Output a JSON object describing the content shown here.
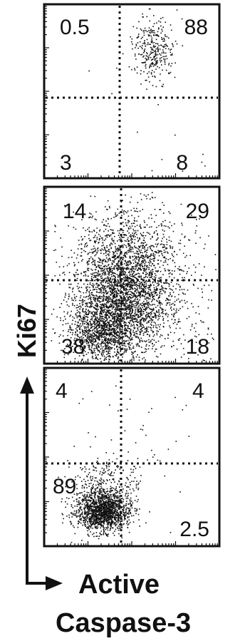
{
  "chart_data": {
    "type": "scatter",
    "y_axis_label": "Ki67",
    "x_axis_label_line1": "Active",
    "x_axis_label_line2": "Caspase-3",
    "panels": [
      {
        "quadrants": {
          "upper_left": "0.5",
          "upper_right": "88",
          "lower_left": "3",
          "lower_right": "8"
        },
        "clusters": [
          {
            "cx": 0.62,
            "cy": 0.26,
            "sx": 0.06,
            "sy": 0.09,
            "n": 320
          },
          {
            "cx": 0.75,
            "cy": 0.75,
            "sx": 0.25,
            "sy": 0.2,
            "n": 18
          }
        ]
      },
      {
        "quadrants": {
          "upper_left": "14",
          "upper_right": "29",
          "lower_left": "38",
          "lower_right": "18"
        },
        "clusters": [
          {
            "cx": 0.43,
            "cy": 0.65,
            "sx": 0.13,
            "sy": 0.17,
            "n": 2600
          },
          {
            "cx": 0.5,
            "cy": 0.38,
            "sx": 0.16,
            "sy": 0.14,
            "n": 900
          },
          {
            "cx": 0.3,
            "cy": 0.82,
            "sx": 0.09,
            "sy": 0.08,
            "n": 700
          },
          {
            "cx": 0.72,
            "cy": 0.72,
            "sx": 0.14,
            "sy": 0.14,
            "n": 200
          }
        ]
      },
      {
        "quadrants": {
          "upper_left": "4",
          "upper_right": "4",
          "lower_left": "89",
          "lower_right": "2.5"
        },
        "clusters": [
          {
            "cx": 0.33,
            "cy": 0.8,
            "sx": 0.075,
            "sy": 0.055,
            "n": 1500
          },
          {
            "cx": 0.35,
            "cy": 0.67,
            "sx": 0.1,
            "sy": 0.09,
            "n": 300
          },
          {
            "cx": 0.55,
            "cy": 0.4,
            "sx": 0.2,
            "sy": 0.22,
            "n": 45
          }
        ]
      }
    ]
  }
}
